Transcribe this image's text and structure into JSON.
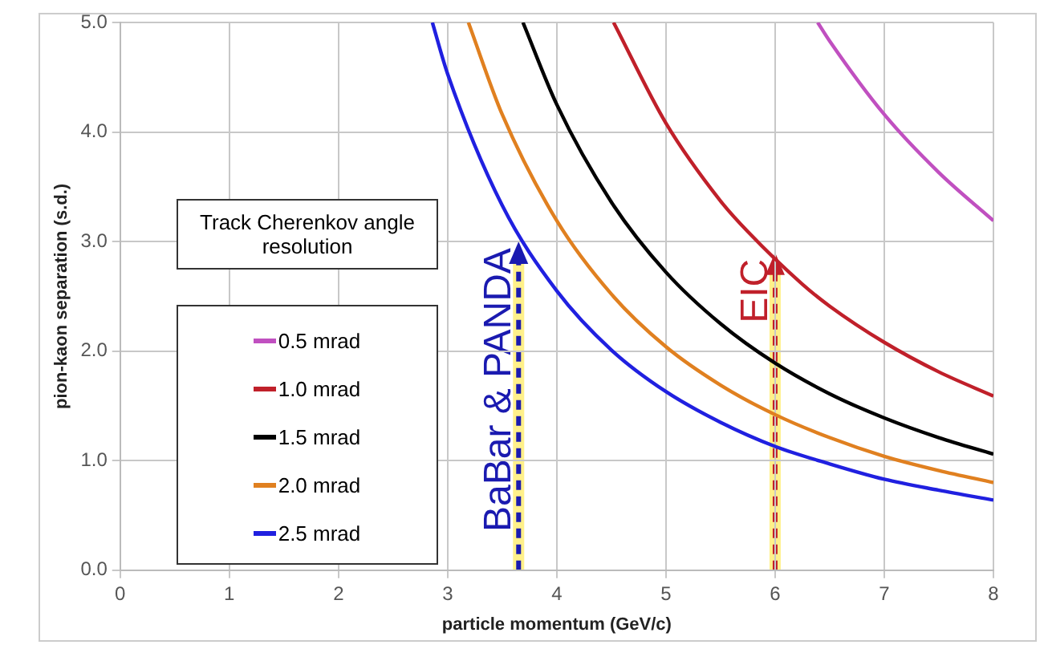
{
  "chart_data": {
    "type": "line",
    "xlabel": "particle momentum (GeV/c)",
    "ylabel": "pion-kaon separation (s.d.)",
    "legend_title": "Track Cherenkov angle resolution",
    "legend": "left",
    "grid": true,
    "marker": "none",
    "line_style": "solid",
    "xlim": [
      0,
      8
    ],
    "xticks": [
      0,
      1,
      2,
      3,
      4,
      5,
      6,
      7,
      8
    ],
    "ylim": [
      0,
      5
    ],
    "yticks": [
      {
        "value": 0,
        "label": "0.0"
      },
      {
        "value": 1,
        "label": "1.0"
      },
      {
        "value": 2,
        "label": "2.0"
      },
      {
        "value": 3,
        "label": "3.0"
      },
      {
        "value": 4,
        "label": "4.0"
      },
      {
        "value": 5,
        "label": "5.0"
      }
    ],
    "series": [
      {
        "name": "0.5 mrad",
        "color": "#c050c0",
        "x": [
          6.39,
          6.5,
          7,
          7.5,
          8
        ],
        "values": [
          5.0,
          4.83,
          4.16,
          3.63,
          3.19
        ]
      },
      {
        "name": "1.0 mrad",
        "color": "#c0202a",
        "x": [
          4.52,
          5,
          5.5,
          5.75,
          6.25,
          6.5,
          7,
          7.5,
          8
        ],
        "values": [
          5.0,
          4.08,
          3.37,
          3.09,
          2.61,
          2.41,
          2.08,
          1.81,
          1.59
        ]
      },
      {
        "name": "1.5 mrad",
        "color": "#000000",
        "x": [
          3.69,
          4,
          4.5,
          5,
          5.5,
          6,
          6.5,
          7,
          7.5,
          8
        ],
        "values": [
          5.0,
          4.25,
          3.36,
          2.72,
          2.25,
          1.89,
          1.61,
          1.39,
          1.21,
          1.06
        ]
      },
      {
        "name": "2.0 mrad",
        "color": "#e08020",
        "x": [
          3.19,
          3.5,
          4,
          4.5,
          5,
          5.5,
          6,
          6.5,
          7,
          7.5,
          8
        ],
        "values": [
          5.0,
          4.16,
          3.19,
          2.52,
          2.04,
          1.69,
          1.42,
          1.21,
          1.04,
          0.91,
          0.8
        ]
      },
      {
        "name": "2.5 mrad",
        "color": "#2020e0",
        "x": [
          2.86,
          3,
          3.5,
          4,
          4.5,
          5,
          5.5,
          6,
          6.5,
          7,
          7.5,
          8
        ],
        "values": [
          5.0,
          4.53,
          3.33,
          2.55,
          2.01,
          1.63,
          1.35,
          1.13,
          0.97,
          0.83,
          0.73,
          0.64
        ]
      }
    ],
    "annotations": [
      {
        "text": "BaBar & PANDA",
        "x": 3.65,
        "y": 3.0
      },
      {
        "text": "EIC",
        "x": 6,
        "y": 2.9
      }
    ]
  }
}
